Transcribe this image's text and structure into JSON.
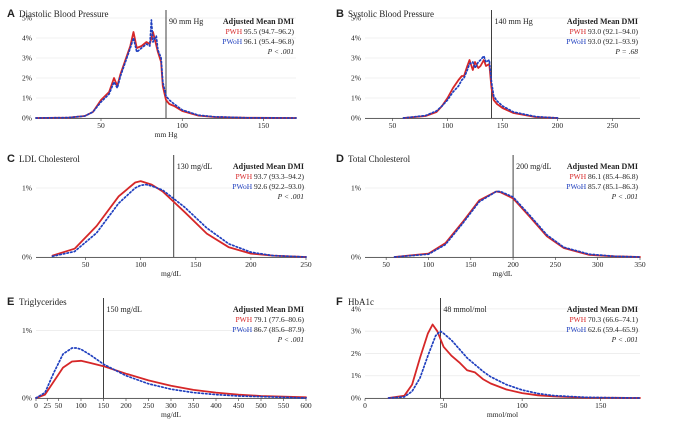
{
  "colors": {
    "pwh": "#d62728",
    "pwoh": "#1f3fbf",
    "axis": "#333333",
    "grid": "#ebebeb"
  },
  "chart_data": [
    {
      "type": "line",
      "letter": "A",
      "title": "Diastolic Blood Pressure",
      "xlabel": "mm Hg",
      "xlim": [
        10,
        170
      ],
      "xticks": [
        50,
        100,
        150
      ],
      "ylim": [
        0,
        5.3
      ],
      "yticks": [
        0,
        1,
        2,
        3,
        4,
        5
      ],
      "yticklabels": [
        "0%",
        "1%",
        "2%",
        "3%",
        "4%",
        "5%"
      ],
      "threshold": {
        "x": 90,
        "label": "90 mm Hg"
      },
      "legend": {
        "header": "Adjusted Mean DMI",
        "pvalue": "P < .001",
        "rows": [
          {
            "group": "PWH",
            "value": "95.5 (94.7–96.2)"
          },
          {
            "group": "PWoH",
            "value": "96.1 (95.4–96.8)"
          }
        ]
      },
      "series": [
        {
          "name": "PWH",
          "x": [
            10,
            30,
            40,
            45,
            50,
            55,
            58,
            60,
            62,
            65,
            68,
            70,
            72,
            75,
            78,
            80,
            82,
            85,
            87,
            88,
            90,
            92,
            95,
            100,
            110,
            120,
            140,
            170
          ],
          "y": [
            0,
            0.02,
            0.1,
            0.3,
            0.9,
            1.3,
            2.0,
            1.6,
            2.2,
            2.9,
            3.6,
            4.3,
            3.5,
            3.6,
            3.8,
            3.7,
            4.3,
            3.3,
            2.8,
            1.6,
            0.9,
            0.7,
            0.6,
            0.35,
            0.12,
            0.05,
            0.01,
            0
          ]
        },
        {
          "name": "PWoH",
          "x": [
            10,
            30,
            40,
            45,
            50,
            55,
            58,
            60,
            62,
            65,
            68,
            70,
            72,
            75,
            78,
            80,
            81,
            82,
            84,
            85,
            87,
            88,
            90,
            92,
            95,
            100,
            110,
            120,
            140,
            170
          ],
          "y": [
            0,
            0.02,
            0.1,
            0.3,
            0.8,
            1.2,
            1.8,
            1.5,
            2.1,
            2.8,
            3.5,
            4.0,
            3.3,
            3.5,
            3.7,
            3.6,
            4.9,
            3.8,
            4.1,
            3.4,
            3.0,
            1.8,
            1.1,
            0.9,
            0.7,
            0.4,
            0.14,
            0.06,
            0.01,
            0
          ]
        }
      ]
    },
    {
      "type": "line",
      "letter": "B",
      "title": "Systolic Blood Pressure",
      "xlabel": "",
      "xlim": [
        25,
        275
      ],
      "xticks": [
        50,
        100,
        150,
        200,
        250
      ],
      "ylim": [
        0,
        5.3
      ],
      "yticks": [
        0,
        1,
        2,
        3,
        4,
        5
      ],
      "yticklabels": [
        "0%",
        "1%",
        "2%",
        "3%",
        "4%",
        "5%"
      ],
      "threshold": {
        "x": 140,
        "label": "140 mm Hg"
      },
      "legend": {
        "header": "Adjusted Mean DMI",
        "pvalue": "P = .68",
        "rows": [
          {
            "group": "PWH",
            "value": "93.0 (92.1–94.0)"
          },
          {
            "group": "PWoH",
            "value": "93.0 (92.1–93.9)"
          }
        ]
      },
      "series": [
        {
          "name": "PWH",
          "x": [
            60,
            80,
            90,
            95,
            100,
            105,
            110,
            113,
            115,
            118,
            120,
            123,
            125,
            128,
            130,
            133,
            135,
            138,
            140,
            142,
            145,
            150,
            160,
            180,
            200
          ],
          "y": [
            0,
            0.1,
            0.3,
            0.6,
            1.0,
            1.5,
            1.9,
            2.1,
            2.1,
            2.6,
            2.9,
            2.4,
            2.8,
            2.5,
            2.6,
            2.9,
            2.6,
            2.7,
            1.5,
            0.9,
            0.7,
            0.5,
            0.25,
            0.05,
            0
          ]
        },
        {
          "name": "PWoH",
          "x": [
            60,
            80,
            90,
            95,
            100,
            105,
            110,
            113,
            115,
            118,
            120,
            123,
            125,
            128,
            130,
            133,
            135,
            138,
            140,
            142,
            145,
            150,
            160,
            180,
            200
          ],
          "y": [
            0,
            0.12,
            0.35,
            0.6,
            0.9,
            1.3,
            1.6,
            1.9,
            2.0,
            2.4,
            2.7,
            2.8,
            2.5,
            2.8,
            2.9,
            3.1,
            2.8,
            2.9,
            1.8,
            1.1,
            0.85,
            0.6,
            0.3,
            0.07,
            0
          ]
        }
      ]
    },
    {
      "type": "line",
      "letter": "C",
      "title": "LDL Cholesterol",
      "xlabel": "mg/dL",
      "xlim": [
        5,
        250
      ],
      "xticks": [
        50,
        100,
        150,
        200,
        250
      ],
      "ylim": [
        0,
        1.45
      ],
      "yticks": [
        0,
        1
      ],
      "yticklabels": [
        "0%",
        "1%"
      ],
      "threshold": {
        "x": 130,
        "label": "130 mg/dL"
      },
      "legend": {
        "header": "Adjusted Mean DMI",
        "pvalue": "P < .001",
        "rows": [
          {
            "group": "PWH",
            "value": "93.7 (93.3–94.2)"
          },
          {
            "group": "PWoH",
            "value": "92.6 (92.2–93.0)"
          }
        ]
      },
      "series": [
        {
          "name": "PWH",
          "x": [
            20,
            40,
            60,
            80,
            95,
            100,
            110,
            120,
            140,
            160,
            180,
            200,
            220,
            250
          ],
          "y": [
            0.02,
            0.12,
            0.45,
            0.88,
            1.08,
            1.1,
            1.05,
            0.95,
            0.65,
            0.34,
            0.14,
            0.05,
            0.02,
            0
          ]
        },
        {
          "name": "PWoH",
          "x": [
            20,
            40,
            60,
            80,
            95,
            100,
            105,
            110,
            120,
            140,
            160,
            180,
            200,
            220,
            250
          ],
          "y": [
            0.01,
            0.08,
            0.35,
            0.78,
            1.0,
            1.04,
            1.05,
            1.03,
            0.97,
            0.72,
            0.42,
            0.19,
            0.07,
            0.02,
            0
          ]
        }
      ]
    },
    {
      "type": "line",
      "letter": "D",
      "title": "Total Cholesterol",
      "xlabel": "mg/dL",
      "xlim": [
        25,
        350
      ],
      "xticks": [
        50,
        100,
        150,
        200,
        250,
        300,
        350
      ],
      "ylim": [
        0,
        1.45
      ],
      "yticks": [
        0,
        1
      ],
      "yticklabels": [
        "0%",
        "1%"
      ],
      "threshold": {
        "x": 200,
        "label": "200 mg/dL"
      },
      "legend": {
        "header": "Adjusted Mean DMI",
        "pvalue": "P < .001",
        "rows": [
          {
            "group": "PWH",
            "value": "86.1 (85.4–86.8)"
          },
          {
            "group": "PWoH",
            "value": "85.7 (85.1–86.3)"
          }
        ]
      },
      "series": [
        {
          "name": "PWH",
          "x": [
            60,
            100,
            120,
            140,
            160,
            180,
            185,
            200,
            220,
            240,
            260,
            290,
            320,
            350
          ],
          "y": [
            0,
            0.05,
            0.2,
            0.5,
            0.82,
            0.95,
            0.94,
            0.85,
            0.58,
            0.3,
            0.13,
            0.03,
            0.01,
            0
          ]
        },
        {
          "name": "PWoH",
          "x": [
            60,
            100,
            120,
            140,
            160,
            180,
            185,
            200,
            220,
            240,
            260,
            290,
            320,
            350
          ],
          "y": [
            0,
            0.04,
            0.18,
            0.48,
            0.8,
            0.95,
            0.95,
            0.87,
            0.6,
            0.32,
            0.14,
            0.04,
            0.01,
            0
          ]
        }
      ]
    },
    {
      "type": "line",
      "letter": "E",
      "title": "Triglycerides",
      "xlabel": "mg/dL",
      "xlim": [
        0,
        600
      ],
      "xticks": [
        0,
        25,
        50,
        100,
        150,
        200,
        250,
        300,
        350,
        400,
        450,
        500,
        550,
        600
      ],
      "ylim": [
        0,
        1.45
      ],
      "yticks": [
        0,
        1
      ],
      "yticklabels": [
        "0%",
        "1%"
      ],
      "threshold": {
        "x": 150,
        "label": "150 mg/dL"
      },
      "legend": {
        "header": "Adjusted Mean DMI",
        "pvalue": "P < .001",
        "rows": [
          {
            "group": "PWH",
            "value": "79.1 (77.6–80.6)"
          },
          {
            "group": "PWoH",
            "value": "86.7 (85.6–87.9)"
          }
        ]
      },
      "series": [
        {
          "name": "PWH",
          "x": [
            0,
            20,
            40,
            60,
            80,
            100,
            120,
            150,
            200,
            250,
            300,
            350,
            400,
            450,
            500,
            550,
            600
          ],
          "y": [
            0,
            0.05,
            0.25,
            0.45,
            0.54,
            0.55,
            0.52,
            0.47,
            0.36,
            0.26,
            0.18,
            0.12,
            0.08,
            0.05,
            0.03,
            0.02,
            0.01
          ]
        },
        {
          "name": "PWoH",
          "x": [
            0,
            20,
            40,
            60,
            80,
            90,
            100,
            120,
            150,
            200,
            250,
            300,
            350,
            400,
            450,
            500,
            550,
            600
          ],
          "y": [
            0,
            0.08,
            0.38,
            0.65,
            0.74,
            0.74,
            0.72,
            0.64,
            0.5,
            0.33,
            0.21,
            0.13,
            0.08,
            0.05,
            0.03,
            0.02,
            0.01,
            0
          ]
        }
      ]
    },
    {
      "type": "line",
      "letter": "F",
      "title": "HbA1c",
      "xlabel": "mmol/mol",
      "xlim": [
        0,
        175
      ],
      "xticks": [
        0,
        50,
        100,
        150
      ],
      "ylim": [
        0,
        4.4
      ],
      "yticks": [
        0,
        1,
        2,
        3,
        4
      ],
      "yticklabels": [
        "0%",
        "1%",
        "2%",
        "3%",
        "4%"
      ],
      "threshold": {
        "x": 48,
        "label": "48 mmol/mol"
      },
      "legend": {
        "header": "Adjusted Mean DMI",
        "pvalue": "P < .001",
        "rows": [
          {
            "group": "PWH",
            "value": "70.3 (66.6–74.1)"
          },
          {
            "group": "PWoH",
            "value": "62.6 (59.4–65.9)"
          }
        ]
      },
      "series": [
        {
          "name": "PWH",
          "x": [
            15,
            25,
            30,
            35,
            40,
            43,
            46,
            50,
            55,
            60,
            65,
            70,
            75,
            80,
            90,
            100,
            110,
            120,
            140,
            160,
            175
          ],
          "y": [
            0,
            0.1,
            0.6,
            1.8,
            2.9,
            3.3,
            3.0,
            2.3,
            1.9,
            1.6,
            1.25,
            1.15,
            0.85,
            0.65,
            0.38,
            0.22,
            0.12,
            0.07,
            0.02,
            0.01,
            0
          ]
        },
        {
          "name": "PWoH",
          "x": [
            15,
            25,
            30,
            35,
            40,
            45,
            48,
            50,
            55,
            60,
            65,
            70,
            75,
            80,
            90,
            100,
            110,
            120,
            140,
            160,
            175
          ],
          "y": [
            0,
            0.05,
            0.3,
            0.9,
            1.9,
            2.8,
            3.0,
            2.9,
            2.6,
            2.2,
            1.8,
            1.5,
            1.2,
            0.95,
            0.6,
            0.36,
            0.2,
            0.11,
            0.03,
            0.01,
            0
          ]
        }
      ]
    }
  ]
}
